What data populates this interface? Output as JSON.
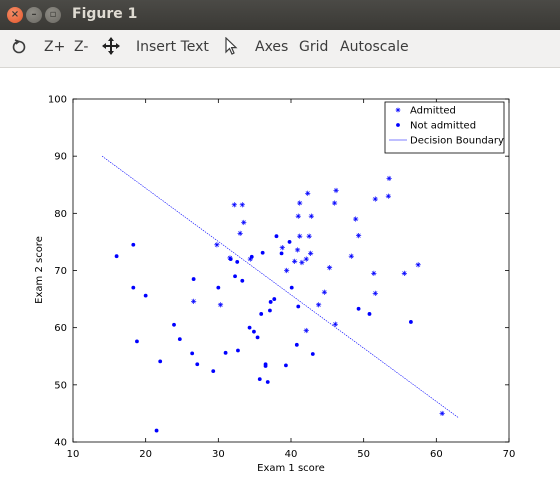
{
  "window": {
    "title": "Figure 1"
  },
  "toolbar": {
    "zoom_in": "Z+",
    "zoom_out": "Z-",
    "insert_text": "Insert Text",
    "axes": "Axes",
    "grid": "Grid",
    "autoscale": "Autoscale"
  },
  "chart_data": {
    "type": "scatter",
    "xlabel": "Exam 1 score",
    "ylabel": "Exam 2 score",
    "xlim": [
      10,
      70
    ],
    "ylim": [
      40,
      100
    ],
    "xticks": [
      10,
      20,
      30,
      40,
      50,
      60,
      70
    ],
    "yticks": [
      40,
      50,
      60,
      70,
      80,
      90,
      100
    ],
    "legend": "top-right",
    "color": "#0000ff",
    "series": [
      {
        "name": "Admitted",
        "marker": "star",
        "points": [
          [
            30.3,
            64.0
          ],
          [
            26.6,
            64.6
          ],
          [
            29.8,
            74.5
          ],
          [
            32.2,
            81.5
          ],
          [
            33.3,
            81.5
          ],
          [
            33.5,
            78.4
          ],
          [
            33.0,
            76.5
          ],
          [
            31.6,
            72.2
          ],
          [
            34.4,
            72.0
          ],
          [
            38.8,
            74.0
          ],
          [
            39.4,
            70.0
          ],
          [
            40.5,
            71.6
          ],
          [
            40.9,
            73.6
          ],
          [
            41.2,
            76.0
          ],
          [
            41.5,
            71.4
          ],
          [
            42.1,
            72.0
          ],
          [
            42.5,
            76.0
          ],
          [
            42.7,
            73.0
          ],
          [
            41.0,
            79.5
          ],
          [
            41.2,
            81.8
          ],
          [
            42.3,
            83.5
          ],
          [
            42.8,
            79.5
          ],
          [
            45.3,
            70.5
          ],
          [
            44.6,
            66.2
          ],
          [
            42.1,
            59.5
          ],
          [
            43.8,
            64.0
          ],
          [
            46.1,
            60.6
          ],
          [
            46.0,
            81.8
          ],
          [
            46.2,
            84.0
          ],
          [
            48.3,
            72.5
          ],
          [
            48.9,
            79.0
          ],
          [
            49.3,
            76.1
          ],
          [
            51.6,
            82.5
          ],
          [
            51.4,
            69.5
          ],
          [
            51.6,
            66.0
          ],
          [
            53.4,
            83.0
          ],
          [
            53.5,
            86.1
          ],
          [
            55.6,
            69.5
          ],
          [
            57.5,
            71.0
          ],
          [
            60.8,
            45.0
          ]
        ]
      },
      {
        "name": "Not admitted",
        "marker": "dot",
        "points": [
          [
            16.0,
            72.5
          ],
          [
            18.3,
            74.5
          ],
          [
            18.3,
            67.0
          ],
          [
            18.8,
            57.6
          ],
          [
            20.0,
            65.6
          ],
          [
            21.5,
            42.0
          ],
          [
            22.0,
            54.1
          ],
          [
            23.9,
            60.5
          ],
          [
            24.7,
            58.0
          ],
          [
            26.4,
            55.5
          ],
          [
            26.6,
            68.5
          ],
          [
            27.1,
            53.6
          ],
          [
            29.3,
            52.4
          ],
          [
            30.0,
            67.0
          ],
          [
            31.0,
            55.6
          ],
          [
            31.7,
            72.0
          ],
          [
            32.3,
            69.0
          ],
          [
            32.7,
            56.0
          ],
          [
            32.6,
            71.5
          ],
          [
            33.3,
            68.2
          ],
          [
            34.3,
            60.0
          ],
          [
            34.6,
            72.4
          ],
          [
            34.9,
            59.3
          ],
          [
            35.4,
            58.3
          ],
          [
            35.7,
            51.0
          ],
          [
            35.9,
            62.4
          ],
          [
            36.1,
            73.1
          ],
          [
            36.5,
            53.3
          ],
          [
            36.5,
            53.6
          ],
          [
            36.8,
            50.5
          ],
          [
            37.1,
            63.0
          ],
          [
            37.2,
            64.5
          ],
          [
            37.7,
            65.0
          ],
          [
            38.0,
            76.0
          ],
          [
            38.7,
            73.0
          ],
          [
            39.3,
            53.4
          ],
          [
            39.8,
            75.0
          ],
          [
            40.1,
            67.0
          ],
          [
            40.8,
            57.0
          ],
          [
            41.0,
            63.7
          ],
          [
            43.0,
            55.4
          ],
          [
            49.3,
            63.3
          ],
          [
            50.8,
            62.4
          ],
          [
            56.5,
            61.0
          ]
        ]
      },
      {
        "name": "Decision Boundary",
        "marker": "line",
        "points": [
          [
            14.0,
            90.0
          ],
          [
            63.0,
            44.3
          ]
        ]
      }
    ]
  }
}
